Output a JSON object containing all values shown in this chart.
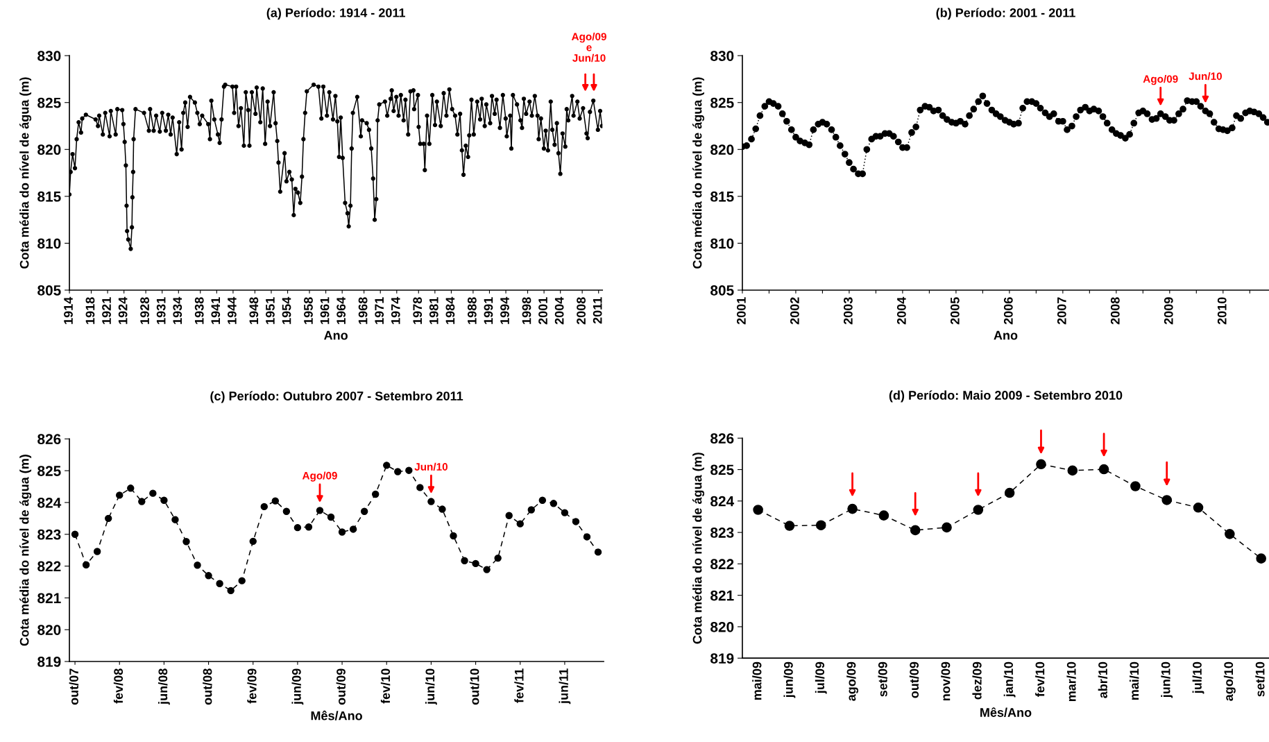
{
  "chart_data": [
    {
      "type": "line",
      "title": "(a) Período: 1914 - 2011",
      "xlabel": "Ano",
      "ylabel": "Cota média do nível de água (m)",
      "marker": "circle",
      "line_style": "solid",
      "x": [
        1914.0,
        1914.22,
        1914.58,
        1915.02,
        1915.33,
        1915.69,
        1916.13,
        1916.35,
        1917.02,
        1918.8,
        1919.24,
        1919.46,
        1920.13,
        1920.57,
        1921.37,
        1921.59,
        1922.48,
        1922.79,
        1923.68,
        1923.9,
        1924.13,
        1924.35,
        1924.48,
        1924.57,
        1924.79,
        1925.24,
        1925.46,
        1925.55,
        1925.68,
        1925.77,
        1926.12,
        1927.68,
        1928.57,
        1928.79,
        1929.45,
        1929.9,
        1930.57,
        1931.01,
        1931.68,
        1932.12,
        1932.56,
        1932.92,
        1933.67,
        1934.12,
        1934.56,
        1934.87,
        1935.23,
        1935.67,
        1936.11,
        1937.0,
        1937.45,
        1937.89,
        1938.34,
        1939.45,
        1939.76,
        1940.02,
        1940.56,
        1941.22,
        1941.54,
        1941.89,
        1942.33,
        1942.56,
        1943.89,
        1944.2,
        1944.56,
        1945.0,
        1945.44,
        1945.98,
        1946.33,
        1946.78,
        1947.0,
        1947.44,
        1948.11,
        1948.33,
        1949.0,
        1949.44,
        1949.88,
        1950.33,
        1950.77,
        1951.44,
        1951.79,
        1952.1,
        1952.33,
        1952.64,
        1953.44,
        1953.79,
        1954.32,
        1954.77,
        1955.12,
        1955.43,
        1955.88,
        1956.32,
        1956.63,
        1956.9,
        1957.21,
        1957.52,
        1958.77,
        1959.65,
        1960.19,
        1960.54,
        1961.21,
        1961.65,
        1962.32,
        1962.76,
        1963.12,
        1963.43,
        1963.74,
        1964.09,
        1964.54,
        1964.98,
        1965.2,
        1965.52,
        1965.74,
        1965.96,
        1966.76,
        1967.42,
        1967.65,
        1968.5,
        1968.92,
        1969.33,
        1969.67,
        1969.96,
        1970.25,
        1970.5,
        1970.8,
        1971.84,
        1972.26,
        1972.88,
        1973.09,
        1973.43,
        1973.93,
        1974.34,
        1974.76,
        1975.26,
        1975.6,
        1976.1,
        1976.52,
        1977.06,
        1977.19,
        1977.89,
        1978.02,
        1978.31,
        1978.94,
        1979.15,
        1979.56,
        1979.98,
        1980.52,
        1981.02,
        1981.36,
        1982.07,
        1982.61,
        1983.11,
        1983.65,
        1984.16,
        1984.7,
        1985.12,
        1985.62,
        1985.95,
        1986.24,
        1986.66,
        1987.08,
        1987.29,
        1987.7,
        1988.12,
        1988.75,
        1989.29,
        1989.58,
        1990.13,
        1990.42,
        1991.13,
        1991.46,
        1991.96,
        1992.3,
        1992.92,
        1993.46,
        1993.97,
        1994.17,
        1994.8,
        1995.01,
        1995.3,
        1996.05,
        1996.68,
        1996.97,
        1997.3,
        1997.72,
        1998.35,
        1998.77,
        1999.31,
        1999.81,
        2000.02,
        2000.44,
        2000.98,
        2001.31,
        2001.73,
        2002.23,
        2002.52,
        2002.94,
        2003.36,
        2003.65,
        2003.99,
        2004.4,
        2004.9,
        2005.16,
        2005.45,
        2006.16,
        2006.41,
        2007.12,
        2007.54,
        2008.16,
        2008.79,
        2009.0,
        2009.42,
        2010.04,
        2010.88,
        2011.29,
        2011.62
      ],
      "series": [
        {
          "color": "#000000",
          "values": [
            815.2,
            817.6,
            819.5,
            818.0,
            821.1,
            822.9,
            821.8,
            823.3,
            823.7,
            823.2,
            822.5,
            823.6,
            821.6,
            823.9,
            821.4,
            824.1,
            821.6,
            824.3,
            824.2,
            822.7,
            820.8,
            818.3,
            814.0,
            811.3,
            810.4,
            809.4,
            811.7,
            814.9,
            817.6,
            821.1,
            824.3,
            823.9,
            822.0,
            824.3,
            822.0,
            823.6,
            821.9,
            823.9,
            822.0,
            823.7,
            821.6,
            823.4,
            819.5,
            822.9,
            820.0,
            823.9,
            825.0,
            822.4,
            825.6,
            825.0,
            823.9,
            822.7,
            823.6,
            822.7,
            821.1,
            825.2,
            823.2,
            821.6,
            820.7,
            823.2,
            826.7,
            826.9,
            826.7,
            823.9,
            826.7,
            822.5,
            824.4,
            820.4,
            826.1,
            824.2,
            820.4,
            826.1,
            823.8,
            826.6,
            822.9,
            826.5,
            820.6,
            825.1,
            822.5,
            826.1,
            822.8,
            820.9,
            818.6,
            815.5,
            819.6,
            816.6,
            817.6,
            816.8,
            813.0,
            815.8,
            815.4,
            814.3,
            817.1,
            821.1,
            823.9,
            826.2,
            826.9,
            826.7,
            823.3,
            826.7,
            823.6,
            826.1,
            823.2,
            825.7,
            823.0,
            819.2,
            823.4,
            819.1,
            814.3,
            813.2,
            811.8,
            814.0,
            820.1,
            823.9,
            825.6,
            821.4,
            823.1,
            822.8,
            822.1,
            820.1,
            816.9,
            812.5,
            814.7,
            823.1,
            824.8,
            825.1,
            823.6,
            825.4,
            826.3,
            824.1,
            825.6,
            823.6,
            825.8,
            823.1,
            825.3,
            821.6,
            826.2,
            826.3,
            824.3,
            825.8,
            822.4,
            820.6,
            820.6,
            817.8,
            823.6,
            820.6,
            825.8,
            822.6,
            825.1,
            822.5,
            826.0,
            823.6,
            826.4,
            824.3,
            823.6,
            821.6,
            823.8,
            819.9,
            817.3,
            820.4,
            819.2,
            821.5,
            825.3,
            821.6,
            825.1,
            823.2,
            825.4,
            822.5,
            824.8,
            822.8,
            825.7,
            823.8,
            825.3,
            822.3,
            825.8,
            823.3,
            821.4,
            823.6,
            820.1,
            825.8,
            824.8,
            823.1,
            822.3,
            825.4,
            823.8,
            825.1,
            823.6,
            825.7,
            823.6,
            821.1,
            823.3,
            820.1,
            822.0,
            819.9,
            825.1,
            822.1,
            820.5,
            822.8,
            819.6,
            817.4,
            821.7,
            820.3,
            824.3,
            823.1,
            825.7,
            823.6,
            825.1,
            823.3,
            824.4,
            821.7,
            821.2,
            824.0,
            825.2,
            822.1,
            824.1,
            822.5
          ]
        }
      ],
      "xlim": [
        1914,
        2011.7
      ],
      "ylim": [
        805,
        830
      ],
      "yticks": [
        805,
        810,
        815,
        820,
        825,
        830
      ],
      "xticks": [
        1914,
        1918,
        1921,
        1924,
        1928,
        1931,
        1934,
        1938,
        1941,
        1944,
        1948,
        1951,
        1954,
        1958,
        1961,
        1964,
        1968,
        1971,
        1974,
        1978,
        1981,
        1984,
        1988,
        1991,
        1994,
        1998,
        2001,
        2004,
        2008,
        2011
      ],
      "annotations": [
        "Ago/09\ne\nJun/10"
      ]
    },
    {
      "type": "line",
      "title": "(b) Período: 2001 - 2011",
      "xlabel": "Ano",
      "ylabel": "Cota média do nível de água (m)",
      "marker": "circle",
      "line_style": "dotted",
      "x": [
        2001.0,
        2001.08,
        2001.17,
        2001.25,
        2001.33,
        2001.42,
        2001.5,
        2001.58,
        2001.67,
        2001.75,
        2001.83,
        2001.92,
        2002.0,
        2002.08,
        2002.17,
        2002.25,
        2002.33,
        2002.42,
        2002.5,
        2002.58,
        2002.67,
        2002.75,
        2002.83,
        2002.92,
        2003.0,
        2003.08,
        2003.17,
        2003.25,
        2003.33,
        2003.42,
        2003.5,
        2003.58,
        2003.67,
        2003.75,
        2003.83,
        2003.92,
        2004.0,
        2004.08,
        2004.17,
        2004.25,
        2004.33,
        2004.42,
        2004.5,
        2004.58,
        2004.67,
        2004.75,
        2004.83,
        2004.92,
        2005.0,
        2005.08,
        2005.17,
        2005.25,
        2005.33,
        2005.42,
        2005.5,
        2005.58,
        2005.67,
        2005.75,
        2005.83,
        2005.92,
        2006.0,
        2006.08,
        2006.17,
        2006.25,
        2006.33,
        2006.42,
        2006.5,
        2006.58,
        2006.67,
        2006.75,
        2006.83,
        2006.92,
        2007.0,
        2007.08,
        2007.17,
        2007.25,
        2007.33,
        2007.42,
        2007.5,
        2007.58,
        2007.67,
        2007.75,
        2007.83,
        2007.92,
        2008.0,
        2008.08,
        2008.17,
        2008.25,
        2008.33,
        2008.42,
        2008.5,
        2008.58,
        2008.67,
        2008.75,
        2008.83,
        2008.92,
        2009.0,
        2009.08,
        2009.17,
        2009.25,
        2009.33,
        2009.42,
        2009.5,
        2009.58,
        2009.67,
        2009.75,
        2009.83,
        2009.92,
        2010.0,
        2010.08,
        2010.17,
        2010.25,
        2010.33,
        2010.42,
        2010.5,
        2010.58,
        2010.67,
        2010.75,
        2010.83
      ],
      "series": [
        {
          "color": "#000000",
          "values": [
            820.3,
            820.4,
            821.1,
            822.2,
            823.6,
            824.6,
            825.1,
            824.9,
            824.6,
            823.8,
            823.0,
            822.1,
            821.3,
            820.9,
            820.7,
            820.5,
            822.1,
            822.7,
            822.9,
            822.7,
            822.1,
            821.3,
            820.4,
            819.5,
            818.6,
            817.9,
            817.4,
            817.4,
            820.0,
            821.1,
            821.4,
            821.4,
            821.7,
            821.7,
            821.4,
            820.8,
            820.2,
            820.2,
            821.8,
            822.4,
            824.2,
            824.6,
            824.5,
            824.1,
            824.2,
            823.6,
            823.2,
            822.9,
            822.8,
            823.0,
            822.7,
            823.6,
            824.3,
            825.1,
            825.7,
            824.9,
            824.2,
            823.8,
            823.5,
            823.1,
            822.9,
            822.7,
            822.8,
            824.4,
            825.1,
            825.1,
            824.9,
            824.4,
            823.9,
            823.5,
            823.8,
            823.0,
            823.0,
            822.1,
            822.5,
            823.5,
            824.2,
            824.5,
            824.1,
            824.3,
            824.1,
            823.5,
            822.8,
            822.1,
            821.7,
            821.5,
            821.2,
            821.6,
            822.8,
            823.9,
            824.1,
            823.8,
            823.2,
            823.3,
            823.8,
            823.5,
            823.1,
            823.1,
            823.8,
            824.3,
            825.2,
            825.1,
            825.1,
            824.6,
            824.1,
            823.8,
            822.9,
            822.2,
            822.1,
            822.0,
            822.3,
            823.6,
            823.3,
            823.9,
            824.1,
            824.0,
            823.8,
            823.4,
            822.9
          ]
        }
      ],
      "xlim": [
        2001,
        2010.86
      ],
      "ylim": [
        805,
        830
      ],
      "yticks": [
        805,
        810,
        815,
        820,
        825,
        830
      ],
      "xticks": [
        2001,
        2002,
        2003,
        2004,
        2005,
        2006,
        2007,
        2008,
        2009,
        2010,
        {
          "value": 2001.5,
          "label": null
        },
        {
          "value": 2002.5,
          "label": null
        },
        {
          "value": 2003.5,
          "label": null
        },
        {
          "value": 2004.5,
          "label": null
        },
        {
          "value": 2005.5,
          "label": null
        },
        {
          "value": 2006.5,
          "label": null
        },
        {
          "value": 2007.5,
          "label": null
        },
        {
          "value": 2008.5,
          "label": null
        },
        {
          "value": 2009.5,
          "label": null
        },
        {
          "value": 2010.5,
          "label": null
        }
      ],
      "annotations": [
        {
          "text": "Ago/09",
          "x": 2008.83,
          "y": 823.8
        },
        {
          "text": "Jun/10",
          "x": 2009.67,
          "y": 824.1
        }
      ]
    },
    {
      "type": "line",
      "title": "(c) Período: Outubro 2007 - Setembro 2011",
      "xlabel": "Mês/Ano",
      "ylabel": "Cota média do nível de água (m)",
      "marker": "circle",
      "line_style": "dashed",
      "x": [
        "2007-10",
        "2007-11",
        "2007-12",
        "2008-01",
        "2008-02",
        "2008-03",
        "2008-04",
        "2008-05",
        "2008-06",
        "2008-07",
        "2008-08",
        "2008-09",
        "2008-10",
        "2008-11",
        "2008-12",
        "2009-01",
        "2009-02",
        "2009-03",
        "2009-04",
        "2009-05",
        "2009-06",
        "2009-07",
        "2009-08",
        "2009-09",
        "2009-10",
        "2009-11",
        "2009-12",
        "2010-01",
        "2010-02",
        "2010-03",
        "2010-04",
        "2010-05",
        "2010-06",
        "2010-07",
        "2010-08",
        "2010-09",
        "2010-10",
        "2010-11",
        "2010-12",
        "2011-01",
        "2011-02",
        "2011-03",
        "2011-04",
        "2011-05",
        "2011-06",
        "2011-07",
        "2011-08",
        "2011-09"
      ],
      "series": [
        {
          "color": "#000000",
          "values": [
            823.0,
            822.04,
            822.46,
            823.5,
            824.23,
            824.45,
            824.03,
            824.29,
            824.07,
            823.46,
            822.77,
            822.03,
            821.7,
            821.45,
            821.23,
            821.54,
            822.78,
            823.87,
            824.05,
            823.72,
            823.21,
            823.23,
            823.75,
            823.54,
            823.07,
            823.16,
            823.72,
            824.26,
            825.17,
            824.97,
            825.01,
            824.47,
            824.03,
            823.79,
            822.95,
            822.17,
            822.08,
            821.89,
            822.25,
            823.59,
            823.33,
            823.77,
            824.07,
            823.97,
            823.68,
            823.4,
            822.92,
            822.44
          ]
        }
      ],
      "xlim": [
        "2007-09-16",
        "2011-09-16"
      ],
      "ylim": [
        819,
        826
      ],
      "yticks": [
        819,
        820,
        821,
        822,
        823,
        824,
        825,
        826
      ],
      "xticks": [
        {
          "value": "2007-10",
          "label": "out/07"
        },
        {
          "value": "2008-02",
          "label": "fev/08"
        },
        {
          "value": "2008-06",
          "label": "jun/08"
        },
        {
          "value": "2008-10",
          "label": "out/08"
        },
        {
          "value": "2009-02",
          "label": "fev/09"
        },
        {
          "value": "2009-06",
          "label": "jun/09"
        },
        {
          "value": "2009-10",
          "label": "out/09"
        },
        {
          "value": "2010-02",
          "label": "fev/10"
        },
        {
          "value": "2010-06",
          "label": "jun/10"
        },
        {
          "value": "2010-10",
          "label": "out/10"
        },
        {
          "value": "2011-02",
          "label": "fev/11"
        },
        {
          "value": "2011-06",
          "label": "jun/11"
        }
      ],
      "annotations": [
        {
          "text": "Ago/09",
          "x": "2009-08",
          "y": 823.75
        },
        {
          "text": "Jun/10",
          "x": "2010-06",
          "y": 824.03
        }
      ]
    },
    {
      "type": "line",
      "title": "(d) Período: Maio 2009 - Setembro 2010",
      "xlabel": "Mês/Ano",
      "ylabel": "Cota média do nível de água (m)",
      "marker": "circle",
      "line_style": "dashed",
      "categories": [
        "mai/09",
        "jun/09",
        "jul/09",
        "ago/09",
        "set/09",
        "out/09",
        "nov/09",
        "dez/09",
        "jan/10",
        "fev/10",
        "mar/10",
        "abr/10",
        "mai/10",
        "jun/10",
        "jul/10",
        "ago/10",
        "set/10"
      ],
      "series": [
        {
          "color": "#000000",
          "values": [
            823.72,
            823.21,
            823.23,
            823.75,
            823.54,
            823.07,
            823.16,
            823.72,
            824.26,
            825.17,
            824.97,
            825.01,
            824.47,
            824.03,
            823.79,
            822.95,
            822.17
          ]
        }
      ],
      "ylim": [
        819,
        826
      ],
      "yticks": [
        819,
        820,
        821,
        822,
        823,
        824,
        825,
        826
      ]
    }
  ]
}
